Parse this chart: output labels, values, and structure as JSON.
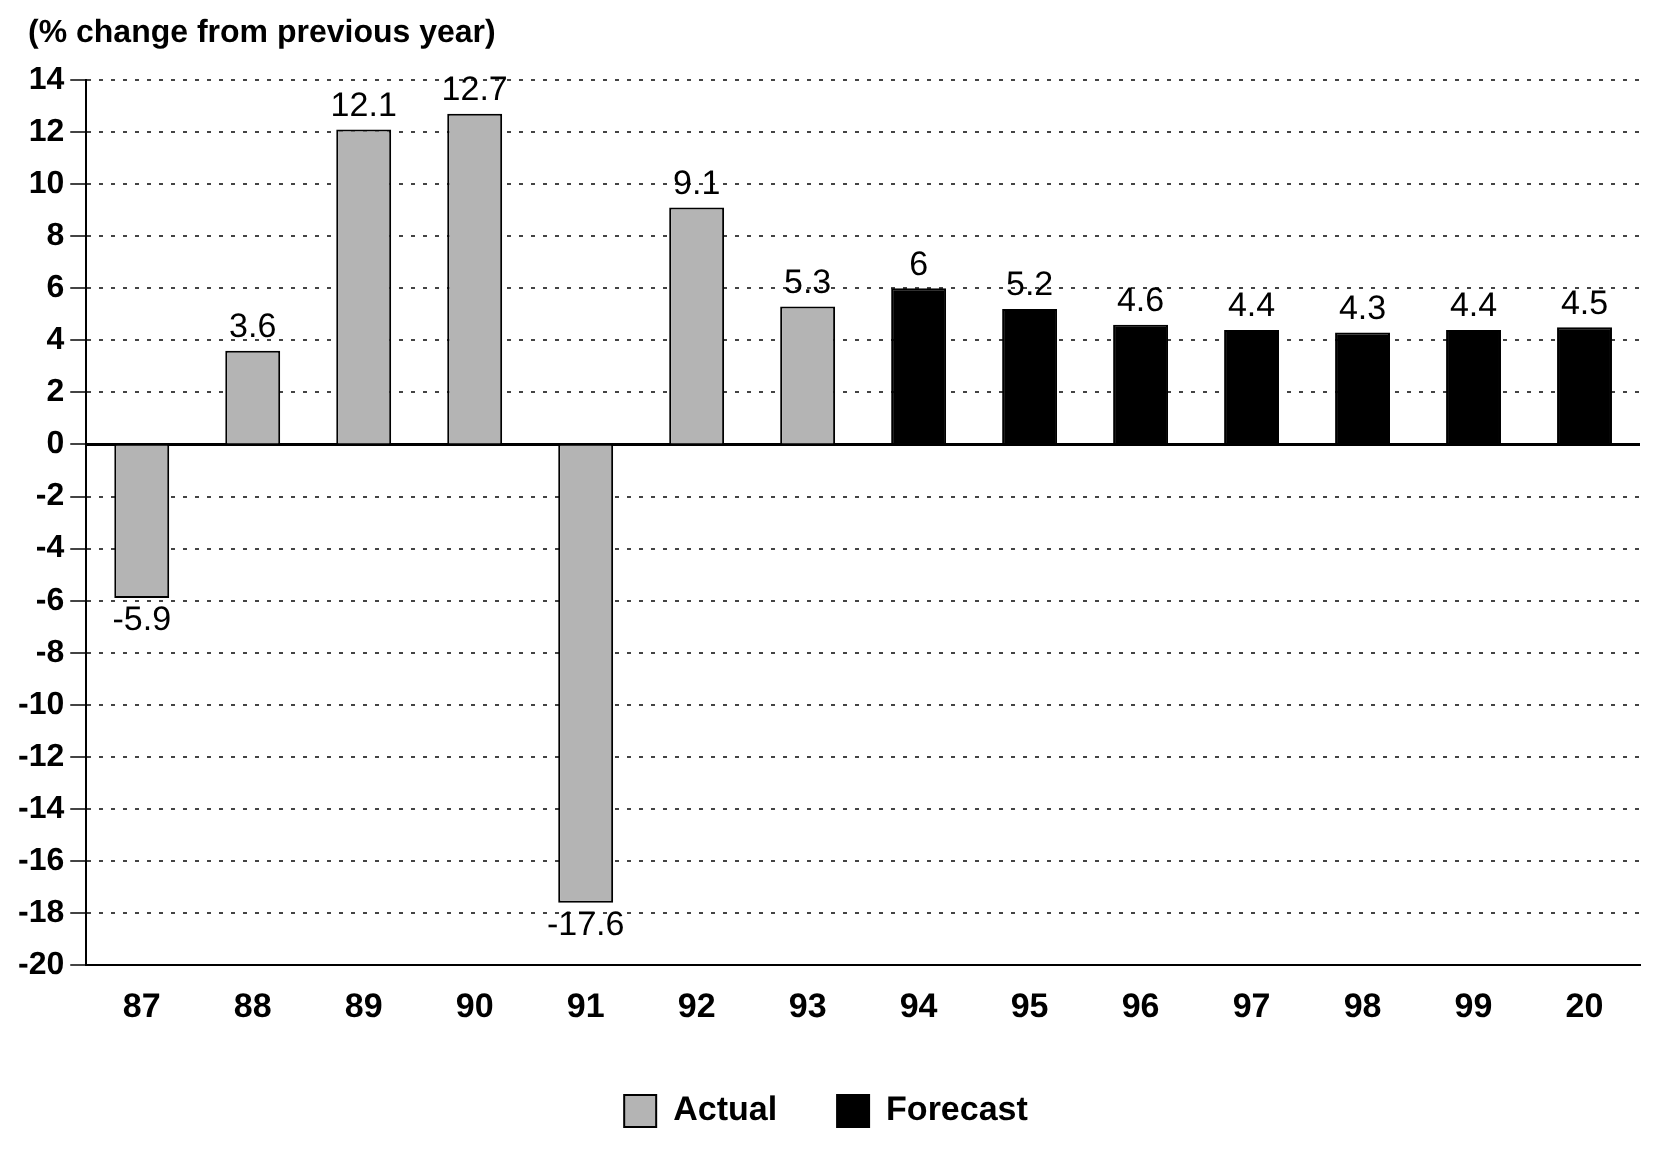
{
  "chart_data": {
    "type": "bar",
    "title": "(% change from previous year)",
    "categories": [
      "87",
      "88",
      "89",
      "90",
      "91",
      "92",
      "93",
      "94",
      "95",
      "96",
      "97",
      "98",
      "99",
      "20"
    ],
    "series": [
      {
        "name": "Actual",
        "color": "#b4b4b4",
        "values": [
          -5.9,
          3.6,
          12.1,
          12.7,
          -17.6,
          9.1,
          5.3,
          null,
          null,
          null,
          null,
          null,
          null,
          null
        ]
      },
      {
        "name": "Forecast",
        "color": "#000000",
        "values": [
          null,
          null,
          null,
          null,
          null,
          null,
          null,
          6,
          5.2,
          4.6,
          4.4,
          4.3,
          4.4,
          4.5
        ]
      }
    ],
    "ylim": [
      -20,
      14
    ],
    "yticks": [
      -20,
      -18,
      -16,
      -14,
      -12,
      -10,
      -8,
      -6,
      -4,
      -2,
      0,
      2,
      4,
      6,
      8,
      10,
      12,
      14
    ],
    "ref_lines": [
      {
        "axis": "y",
        "value": 0
      }
    ],
    "grid": "y",
    "line_style": "dotted",
    "legend": "bottom",
    "data_labels": true
  }
}
